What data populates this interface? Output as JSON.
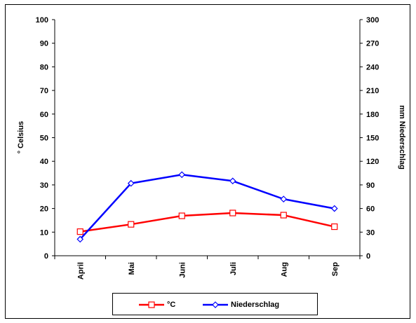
{
  "chart_data": {
    "type": "line",
    "categories": [
      "April",
      "Mai",
      "Juni",
      "Juli",
      "Aug",
      "Sep"
    ],
    "series": [
      {
        "name": "°C",
        "axis": "left",
        "color": "#ff0000",
        "marker": "square",
        "values": [
          10.2,
          13.3,
          16.9,
          18.1,
          17.2,
          12.3
        ]
      },
      {
        "name": "Niederschlag",
        "axis": "right",
        "color": "#0000ff",
        "marker": "diamond",
        "values": [
          21,
          92,
          103,
          95,
          72,
          60
        ]
      }
    ],
    "ylabel": "° Celsius",
    "ylabel_right": "mm Niederschlag",
    "ylim": [
      0,
      100
    ],
    "ylim_right": [
      0,
      300
    ],
    "yticks": [
      0,
      10,
      20,
      30,
      40,
      50,
      60,
      70,
      80,
      90,
      100
    ],
    "yticks_right": [
      0,
      30,
      60,
      90,
      120,
      150,
      180,
      210,
      240,
      270,
      300
    ],
    "grid": false,
    "legend_position": "bottom"
  }
}
